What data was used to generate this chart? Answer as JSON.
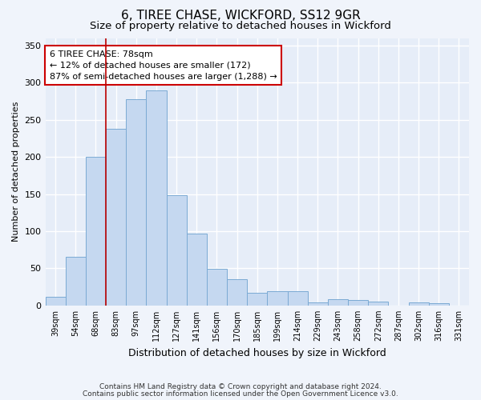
{
  "title1": "6, TIREE CHASE, WICKFORD, SS12 9GR",
  "title2": "Size of property relative to detached houses in Wickford",
  "xlabel": "Distribution of detached houses by size in Wickford",
  "ylabel": "Number of detached properties",
  "categories": [
    "39sqm",
    "54sqm",
    "68sqm",
    "83sqm",
    "97sqm",
    "112sqm",
    "127sqm",
    "141sqm",
    "156sqm",
    "170sqm",
    "185sqm",
    "199sqm",
    "214sqm",
    "229sqm",
    "243sqm",
    "258sqm",
    "272sqm",
    "287sqm",
    "302sqm",
    "316sqm",
    "331sqm"
  ],
  "values": [
    12,
    65,
    200,
    238,
    278,
    290,
    148,
    97,
    49,
    35,
    17,
    19,
    19,
    4,
    8,
    7,
    5,
    0,
    4,
    3,
    0
  ],
  "bar_color": "#c5d8f0",
  "bar_edge_color": "#7baad4",
  "annotation_text": "6 TIREE CHASE: 78sqm\n← 12% of detached houses are smaller (172)\n87% of semi-detached houses are larger (1,288) →",
  "annotation_box_color": "#ffffff",
  "annotation_border_color": "#cc0000",
  "vline_color": "#bb0000",
  "vline_x": 2.5,
  "ylim": [
    0,
    360
  ],
  "yticks": [
    0,
    50,
    100,
    150,
    200,
    250,
    300,
    350
  ],
  "footer1": "Contains HM Land Registry data © Crown copyright and database right 2024.",
  "footer2": "Contains public sector information licensed under the Open Government Licence v3.0.",
  "bg_color": "#f0f4fb",
  "plot_bg_color": "#e6edf8",
  "grid_color": "#ffffff",
  "title_fontsize": 11,
  "subtitle_fontsize": 9.5,
  "xlabel_fontsize": 9,
  "ylabel_fontsize": 8
}
